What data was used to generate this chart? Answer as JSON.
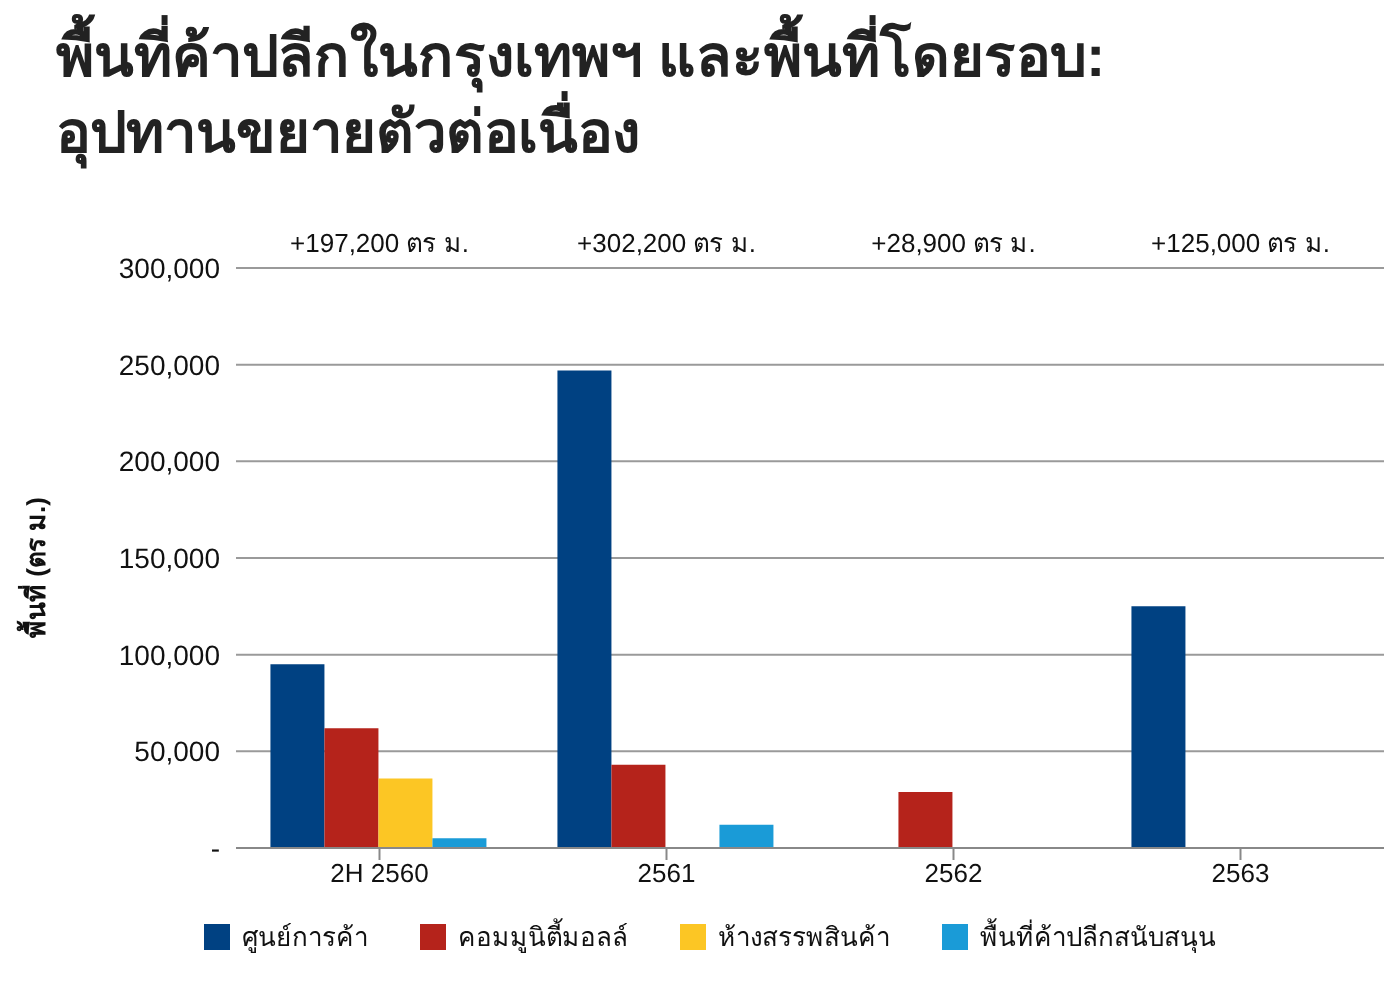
{
  "chart_data": {
    "type": "bar",
    "title": "พื้นที่ค้าปลีกในกรุงเทพฯ และพื้นที่โดยรอบ:\nอุปทานขยายตัวต่อเนื่อง",
    "ylabel": "พื้นที่ (ตร ม.)",
    "categories": [
      "2H 2560",
      "2561",
      "2562",
      "2563"
    ],
    "series": [
      {
        "name": "ศูนย์การค้า",
        "color": "#004182",
        "values": [
          95000,
          247000,
          null,
          125000
        ]
      },
      {
        "name": "คอมมูนิตี้มอลล์",
        "color": "#b5231b",
        "values": [
          62000,
          43000,
          29000,
          null
        ]
      },
      {
        "name": "ห้างสรรพสินค้า",
        "color": "#fcc624",
        "values": [
          36000,
          null,
          null,
          null
        ]
      },
      {
        "name": "พื้นที่ค้าปลีกสนับสนุน",
        "color": "#1a9bd7",
        "values": [
          5000,
          12000,
          null,
          null
        ]
      }
    ],
    "annotations": [
      "+197,200 ตร ม.",
      "+302,200 ตร ม.",
      "+28,900 ตร ม.",
      "+125,000 ตร ม."
    ],
    "ylim": [
      0,
      300000
    ],
    "yticks": [
      {
        "value": 0,
        "label": "-"
      },
      {
        "value": 50000,
        "label": "50,000"
      },
      {
        "value": 100000,
        "label": "100,000"
      },
      {
        "value": 150000,
        "label": "150,000"
      },
      {
        "value": 200000,
        "label": "200,000"
      },
      {
        "value": 250000,
        "label": "250,000"
      },
      {
        "value": 300000,
        "label": "300,000"
      }
    ],
    "grid": "y",
    "legend": "bottom"
  }
}
